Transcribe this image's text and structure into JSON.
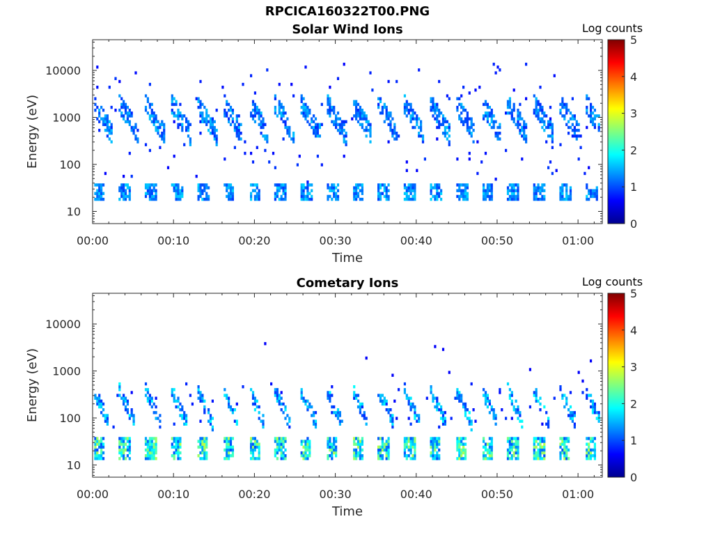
{
  "figure_title": "RPCICA160322T00.PNG",
  "chart_data": [
    {
      "type": "heatmap",
      "title": "Solar Wind Ions",
      "xlabel": "Time",
      "ylabel": "Energy (eV)",
      "x_unit": "minutes since 00:00",
      "xlim": [
        0,
        63
      ],
      "ylim": [
        5.5,
        45000
      ],
      "yscale": "log",
      "x_tick_labels": [
        "00:00",
        "00:10",
        "00:20",
        "00:30",
        "00:40",
        "00:50",
        "01:00"
      ],
      "x_tick_values": [
        0,
        10,
        20,
        30,
        40,
        50,
        60
      ],
      "y_tick_labels": [
        "10",
        "100",
        "1000",
        "10000"
      ],
      "y_tick_values": [
        10,
        100,
        1000,
        10000
      ],
      "colorbar": {
        "label": "Log counts",
        "range": [
          0,
          5
        ],
        "ticks": [
          "0",
          "1",
          "2",
          "3",
          "4",
          "5"
        ],
        "colormap": "jet"
      },
      "grid": false,
      "description_of_structure": "Periodic bursts of ~3.2 min period; main population near 30 eV and a dispersed band 200-2000 eV",
      "period_minutes": 3.2,
      "bands": [
        {
          "name": "low-energy",
          "energy_eV": [
            17,
            38
          ],
          "log_counts_max": 1.7
        },
        {
          "name": "dispersed",
          "energy_eV": [
            150,
            2500
          ],
          "log_counts_max": 1.6
        }
      ]
    },
    {
      "type": "heatmap",
      "title": "Cometary Ions",
      "xlabel": "Time",
      "ylabel": "Energy (eV)",
      "x_unit": "minutes since 00:00",
      "xlim": [
        0,
        63
      ],
      "ylim": [
        5.5,
        45000
      ],
      "yscale": "log",
      "x_tick_labels": [
        "00:00",
        "00:10",
        "00:20",
        "00:30",
        "00:40",
        "00:50",
        "01:00"
      ],
      "x_tick_values": [
        0,
        10,
        20,
        30,
        40,
        50,
        60
      ],
      "y_tick_labels": [
        "10",
        "100",
        "1000",
        "10000"
      ],
      "y_tick_values": [
        10,
        100,
        1000,
        10000
      ],
      "colorbar": {
        "label": "Log counts",
        "range": [
          0,
          5
        ],
        "ticks": [
          "0",
          "1",
          "2",
          "3",
          "4",
          "5"
        ],
        "colormap": "jet"
      },
      "grid": false,
      "period_minutes": 3.2,
      "bands": [
        {
          "name": "low-energy",
          "energy_eV": [
            12,
            40
          ],
          "log_counts_max": 2.8
        },
        {
          "name": "arcs",
          "energy_eV": [
            40,
            500
          ],
          "log_counts_max": 1.9
        }
      ]
    }
  ]
}
